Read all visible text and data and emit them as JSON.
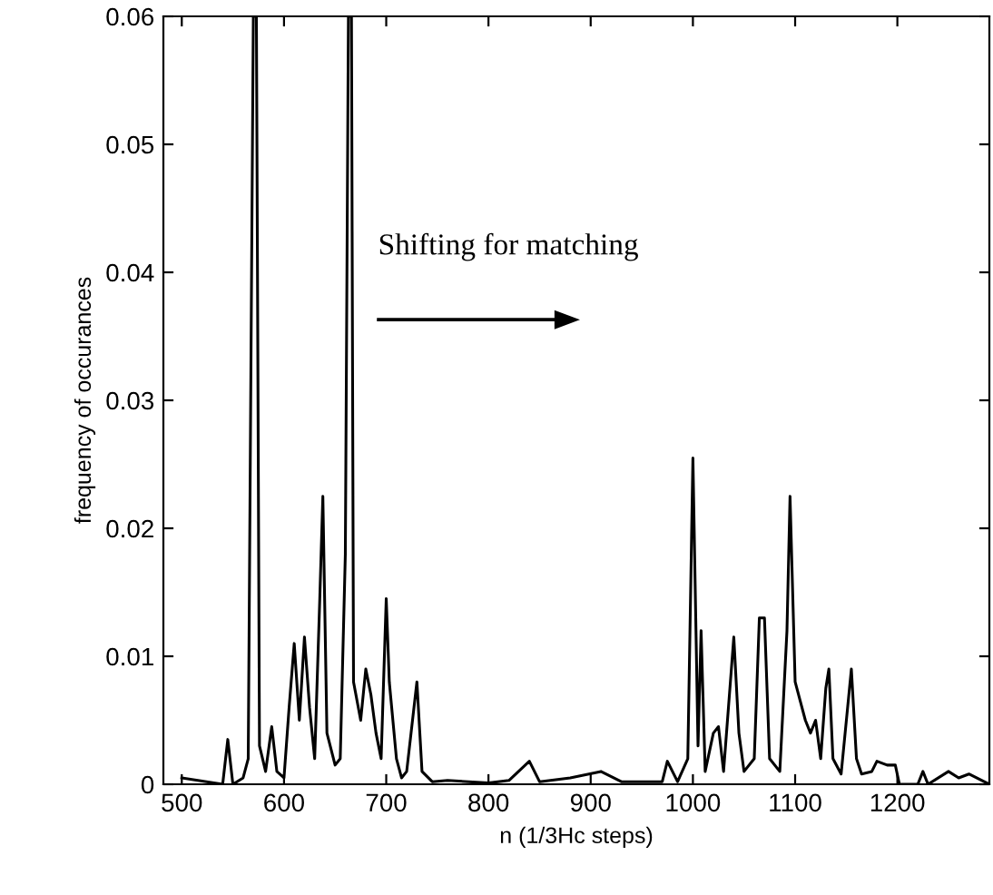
{
  "chart_data": {
    "type": "line",
    "xlabel": "n (1/3Hc steps)",
    "ylabel": "frequency of occurances",
    "x": [
      500,
      540,
      545,
      550,
      560,
      565,
      570,
      573,
      576,
      582,
      588,
      593,
      600,
      605,
      610,
      615,
      620,
      625,
      630,
      635,
      638,
      642,
      650,
      655,
      660,
      663,
      666,
      668,
      675,
      680,
      685,
      690,
      695,
      700,
      703,
      710,
      715,
      720,
      730,
      735,
      745,
      760,
      800,
      820,
      840,
      850,
      880,
      910,
      930,
      970,
      975,
      985,
      995,
      1000,
      1005,
      1008,
      1012,
      1020,
      1025,
      1030,
      1040,
      1045,
      1050,
      1060,
      1065,
      1070,
      1075,
      1085,
      1092,
      1095,
      1100,
      1110,
      1115,
      1120,
      1125,
      1130,
      1133,
      1137,
      1145,
      1155,
      1160,
      1165,
      1175,
      1180,
      1190,
      1198,
      1202,
      1220,
      1225,
      1230,
      1250,
      1260,
      1270,
      1290
    ],
    "series": [
      {
        "color": "#000000",
        "values": [
          0.0005,
          0,
          0.0035,
          0,
          0.0005,
          0.002,
          0.06,
          0.06,
          0.003,
          0.001,
          0.0045,
          0.001,
          0.0005,
          0.006,
          0.011,
          0.005,
          0.0115,
          0.006,
          0.002,
          0.0145,
          0.0225,
          0.004,
          0.0015,
          0.002,
          0.018,
          0.06,
          0.06,
          0.008,
          0.005,
          0.009,
          0.007,
          0.004,
          0.002,
          0.0145,
          0.008,
          0.002,
          0.0005,
          0.001,
          0.008,
          0.001,
          0.0002,
          0.0003,
          0.0001,
          0.0003,
          0.0018,
          0.0002,
          0.0005,
          0.001,
          0.0002,
          0.0002,
          0.0018,
          0.0002,
          0.002,
          0.0255,
          0.003,
          0.012,
          0.001,
          0.004,
          0.0045,
          0.001,
          0.0115,
          0.004,
          0.001,
          0.002,
          0.013,
          0.013,
          0.002,
          0.001,
          0.012,
          0.0225,
          0.008,
          0.005,
          0.004,
          0.005,
          0.002,
          0.0075,
          0.009,
          0.002,
          0.0008,
          0.009,
          0.002,
          0.0008,
          0.001,
          0.0018,
          0.0015,
          0.0015,
          0,
          0,
          0.001,
          0,
          0.001,
          0.0005,
          0.0008,
          0
        ]
      }
    ],
    "xlim": [
      482,
      1290
    ],
    "ylim": [
      0,
      0.06
    ],
    "xticks": [
      500,
      600,
      700,
      800,
      900,
      1000,
      1100,
      1200
    ],
    "yticks": [
      0,
      0.01,
      0.02,
      0.03,
      0.04,
      0.05,
      0.06
    ],
    "annotations": [
      "Shifting for matching"
    ],
    "grid": false,
    "legend": false,
    "marker": "none",
    "line_style": "solid"
  }
}
